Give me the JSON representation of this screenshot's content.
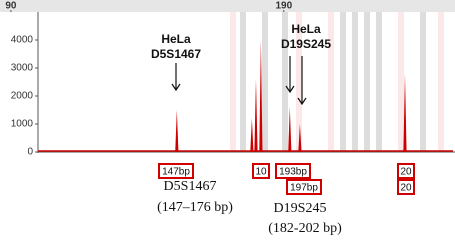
{
  "chart_data": {
    "type": "peaks",
    "x": [
      150.8,
      178.3,
      179.8,
      181.6,
      192.2,
      195.9,
      234.4
    ],
    "values": [
      1500,
      1200,
      2600,
      4000,
      1600,
      1000,
      2800
    ],
    "color": "#cc0000",
    "xlim": [
      86,
      252
    ],
    "xticks": [
      90,
      190
    ],
    "ylim": [
      0,
      5000
    ],
    "yticks": [
      4000,
      3000,
      2000,
      1000,
      0
    ],
    "annotations": [
      "HeLa",
      "D5S1467",
      "HeLa",
      "D19S245"
    ],
    "peak_labels": [
      "147bp",
      "10",
      "193bp",
      "20",
      "197bp",
      "20"
    ],
    "captions": [
      "D5S1467",
      "(147–176 bp)",
      "D19S245",
      "(182-202 bp)"
    ]
  }
}
